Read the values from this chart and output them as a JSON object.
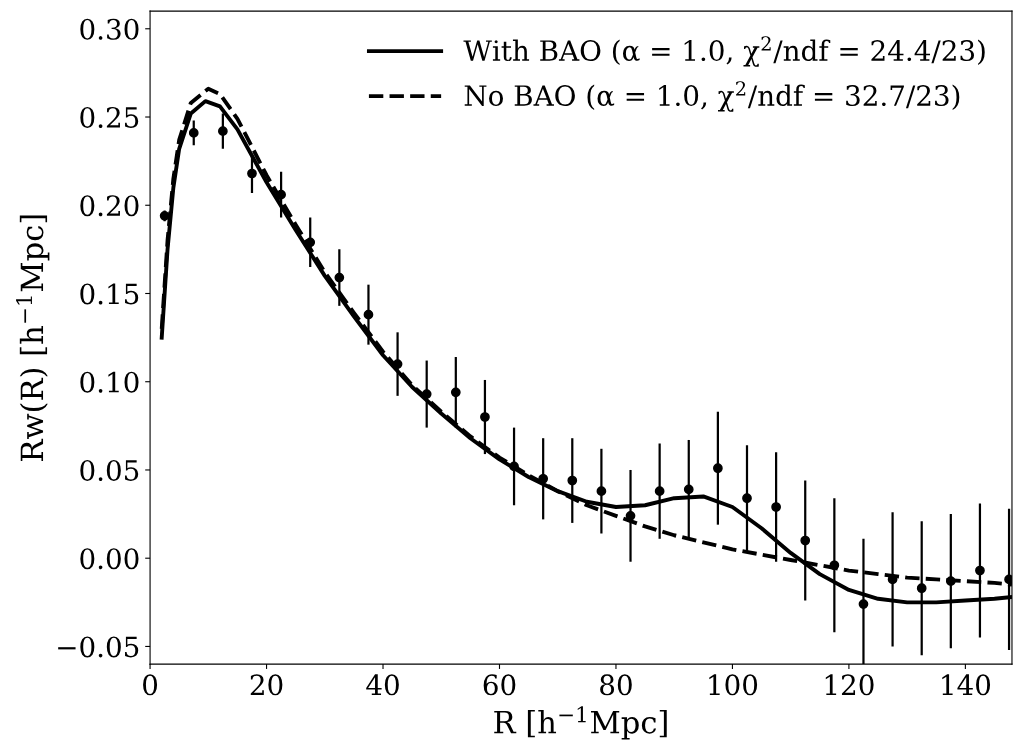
{
  "chart_data": {
    "type": "line",
    "xlabel": "R [h$^{−1}$Mpc]",
    "ylabel": "Rw(R) [h$^{−1}$Mpc]",
    "xlim": [
      0,
      148
    ],
    "ylim": [
      -0.06,
      0.31
    ],
    "xticks": [
      0,
      20,
      40,
      60,
      80,
      100,
      120,
      140
    ],
    "yticks": [
      {
        "value": -0.05,
        "label": "−0.05"
      },
      {
        "value": 0.0,
        "label": "0.00"
      },
      {
        "value": 0.05,
        "label": "0.05"
      },
      {
        "value": 0.1,
        "label": "0.10"
      },
      {
        "value": 0.15,
        "label": "0.15"
      },
      {
        "value": 0.2,
        "label": "0.20"
      },
      {
        "value": 0.25,
        "label": "0.25"
      },
      {
        "value": 0.3,
        "label": "0.30"
      }
    ],
    "grid": false,
    "legend": "top right",
    "series": [
      {
        "name": "With BAO (α = 1.0, χ$^{2}$/ndf = 24.4/23)",
        "color": "#000000",
        "line_style": "solid",
        "marker": "none",
        "x": [
          2,
          3,
          4,
          5,
          7,
          9.5,
          12,
          15,
          20,
          25,
          30,
          35,
          40,
          45,
          50,
          55,
          60,
          65,
          70,
          75,
          80,
          85,
          90,
          95,
          100,
          105,
          110,
          115,
          120,
          125,
          130,
          135,
          140,
          145,
          148
        ],
        "values": [
          0.125,
          0.175,
          0.21,
          0.232,
          0.252,
          0.259,
          0.256,
          0.243,
          0.213,
          0.186,
          0.16,
          0.137,
          0.115,
          0.097,
          0.082,
          0.068,
          0.056,
          0.046,
          0.038,
          0.032,
          0.029,
          0.03,
          0.034,
          0.035,
          0.029,
          0.017,
          0.003,
          -0.009,
          -0.018,
          -0.023,
          -0.025,
          -0.025,
          -0.024,
          -0.023,
          -0.022
        ]
      },
      {
        "name": "No BAO (α = 1.0, χ$^{2}$/ndf = 32.7/23)",
        "color": "#000000",
        "line_style": "dashed",
        "marker": "none",
        "x": [
          2,
          3,
          4,
          5,
          7,
          10,
          12,
          15,
          20,
          25,
          30,
          35,
          40,
          45,
          50,
          55,
          60,
          65,
          70,
          75,
          80,
          85,
          90,
          95,
          100,
          105,
          110,
          115,
          120,
          125,
          130,
          135,
          140,
          145,
          148
        ],
        "values": [
          0.13,
          0.18,
          0.215,
          0.237,
          0.258,
          0.266,
          0.263,
          0.249,
          0.217,
          0.189,
          0.162,
          0.139,
          0.117,
          0.098,
          0.083,
          0.069,
          0.057,
          0.047,
          0.038,
          0.03,
          0.024,
          0.018,
          0.013,
          0.009,
          0.005,
          0.002,
          -0.001,
          -0.004,
          -0.007,
          -0.009,
          -0.011,
          -0.012,
          -0.013,
          -0.014,
          -0.015
        ]
      },
      {
        "type": "scatter",
        "color": "#000000",
        "marker": "circle",
        "x": [
          2.5,
          7.5,
          12.5,
          17.5,
          22.5,
          27.5,
          32.5,
          37.5,
          42.5,
          47.5,
          52.5,
          57.5,
          62.5,
          67.5,
          72.5,
          77.5,
          82.5,
          87.5,
          92.5,
          97.5,
          102.5,
          107.5,
          112.5,
          117.5,
          122.5,
          127.5,
          132.5,
          137.5,
          142.5,
          147.5
        ],
        "values": [
          0.194,
          0.241,
          0.242,
          0.218,
          0.206,
          0.179,
          0.159,
          0.138,
          0.11,
          0.093,
          0.094,
          0.08,
          0.052,
          0.045,
          0.044,
          0.038,
          0.024,
          0.038,
          0.039,
          0.051,
          0.034,
          0.029,
          0.01,
          -0.004,
          -0.026,
          -0.012,
          -0.017,
          -0.013,
          -0.007,
          -0.012
        ],
        "errors": [
          0.003,
          0.007,
          0.01,
          0.011,
          0.013,
          0.014,
          0.016,
          0.017,
          0.018,
          0.019,
          0.02,
          0.021,
          0.022,
          0.023,
          0.024,
          0.024,
          0.026,
          0.027,
          0.028,
          0.032,
          0.03,
          0.031,
          0.034,
          0.038,
          0.037,
          0.038,
          0.038,
          0.038,
          0.038,
          0.04
        ]
      }
    ]
  }
}
